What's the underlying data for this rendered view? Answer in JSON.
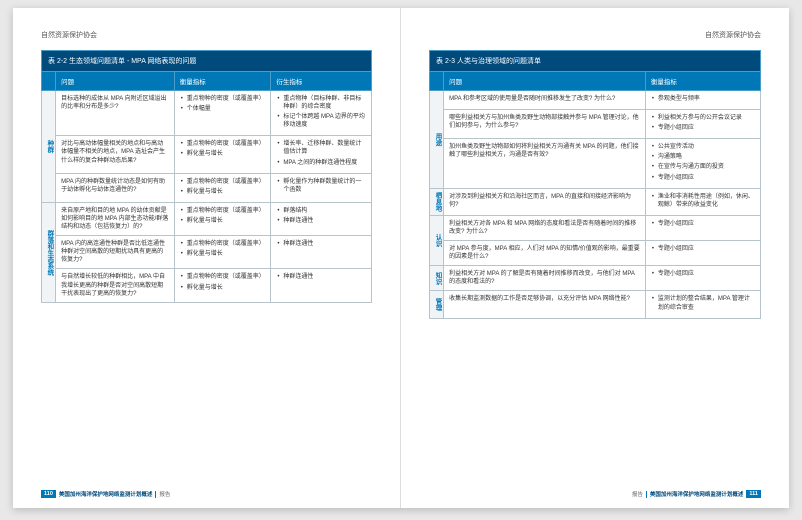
{
  "org_name": "自然资源保护协会",
  "footer": {
    "title": "美国加州海洋保护地网络监测计划概述",
    "section": "报告",
    "page_left": "110",
    "page_right": "111"
  },
  "left_table": {
    "title": "表 2-2 生态领域问题清单 - MPA 网络表现的问题",
    "headers": [
      "问题",
      "衡量指标",
      "衍生指标"
    ],
    "groups": [
      {
        "label": "种群",
        "rows": [
          {
            "q": "目标选种的成体从 MPA 向附近区域溢出的比率和分布是多少?",
            "m": [
              "重点物种的密度（或覆盖率）",
              "个体幅量"
            ],
            "d": [
              "重点物种（目标种群、非目标种群）的综合密度",
              "标记个体跨越 MPA 边界的平均移动速度"
            ]
          },
          {
            "q": "对比与高动体幅量相关的地点和与高动体幅量不相关的地点，MPA 选址会产生什么样的复合种群动态后果?",
            "m": [
              "重点物种的密度（或覆盖率）",
              "孵化量与增长"
            ],
            "d": [
              "增长率、迁移种群、数量统计值估计算",
              "MPA 之间的种群连通性程度"
            ]
          },
          {
            "q": "MPA 内的种群数量统计动态是如何有助于幼体孵化与幼体连通性的?",
            "m": [
              "重点物种的密度（或覆盖率）",
              "孵化量与增长"
            ],
            "d": [
              "孵化量作为种群数量统计的一个函数"
            ]
          }
        ]
      },
      {
        "label": "群落和生态系统",
        "rows": [
          {
            "q": "来自原产地和目的地 MPA 的幼体贡献是如何影响目的地 MPA 内部生态功能/群落结构和动态（包括恢复力）的?",
            "m": [
              "重点物种的密度（或覆盖率）",
              "孵化量与增长"
            ],
            "d": [
              "群落结构",
              "种群连通性"
            ]
          },
          {
            "q": "MPA 内的高连通性种群是否比低连通性种群对空间高散的短期扰动具有更高的恢复力?",
            "m": [
              "重点物种的密度（或覆盖率）",
              "孵化量与增长"
            ],
            "d": [
              "种群连通性"
            ]
          },
          {
            "q": "与自然增长较低的种群相比，MPA 中自我增长更高的种群是否对空间高散短期干扰表现出了更高的恢复力?",
            "m": [
              "重点物种的密度（或覆盖率）",
              "孵化量与增长"
            ],
            "d": [
              "种群连通性"
            ]
          }
        ]
      }
    ]
  },
  "right_table": {
    "title": "表 2-3 人类与治理领域的问题清单",
    "headers": [
      "问题",
      "衡量指标"
    ],
    "groups": [
      {
        "label": "用途",
        "rows": [
          {
            "q": "MPA 和参考区域的使用量是否随时间推移发生了改变? 为什么?",
            "m": [
              "参观类型与频率"
            ]
          },
          {
            "q": "哪些利益相关方与加州鱼类及野生动物部接触并参与 MPA 管理讨论，他们如何参与，为什么参与?",
            "m": [
              "利益相关方参与的公开会议记录",
              "专题小组回应"
            ]
          },
          {
            "q": "加州鱼类及野生动物部如何将利益相关方沟通有关 MPA 的问题，他们接触了哪些利益相关方，沟通是否有效?",
            "m": [
              "公共宣传活动",
              "沟通策略",
              "在宣传与沟通方面的投资",
              "专题小组回应"
            ]
          }
        ]
      },
      {
        "label": "栖息地",
        "rows": [
          {
            "q": "对涉及到利益相关方和沿海社区而言，MPA 的直接和间接经济影响为何?",
            "m": [
              "渔业和非消耗性用途（例如，休闲、观鲸）带来的收益变化"
            ]
          }
        ]
      },
      {
        "label": "认识",
        "rows": [
          {
            "q": "利益相关方对各 MPA 和 MPA 网络的态度和看法是否有随着时间的推移改变? 为什么?",
            "m": [
              "专题小组回应"
            ]
          },
          {
            "q": "对 MPA 参与度，MPA 相应，人们对 MPA 的知情/价值观的影响，最重要的因素是什么?",
            "m": [
              "专题小组回应"
            ]
          }
        ]
      },
      {
        "label": "知识",
        "rows": [
          {
            "q": "利益相关方对 MPA 的了解是否有随着时间推移而改变，与他们对 MPA 的态度和看法的?",
            "m": [
              "专题小组回应"
            ]
          }
        ]
      },
      {
        "label": "管理",
        "rows": [
          {
            "q": "收集长期监测数据的工作是否足够协调，以充分评估 MPA 网络性能?",
            "m": [
              "监测计划的整合结果，MPA 管理计划的综合审查"
            ]
          }
        ]
      }
    ]
  }
}
